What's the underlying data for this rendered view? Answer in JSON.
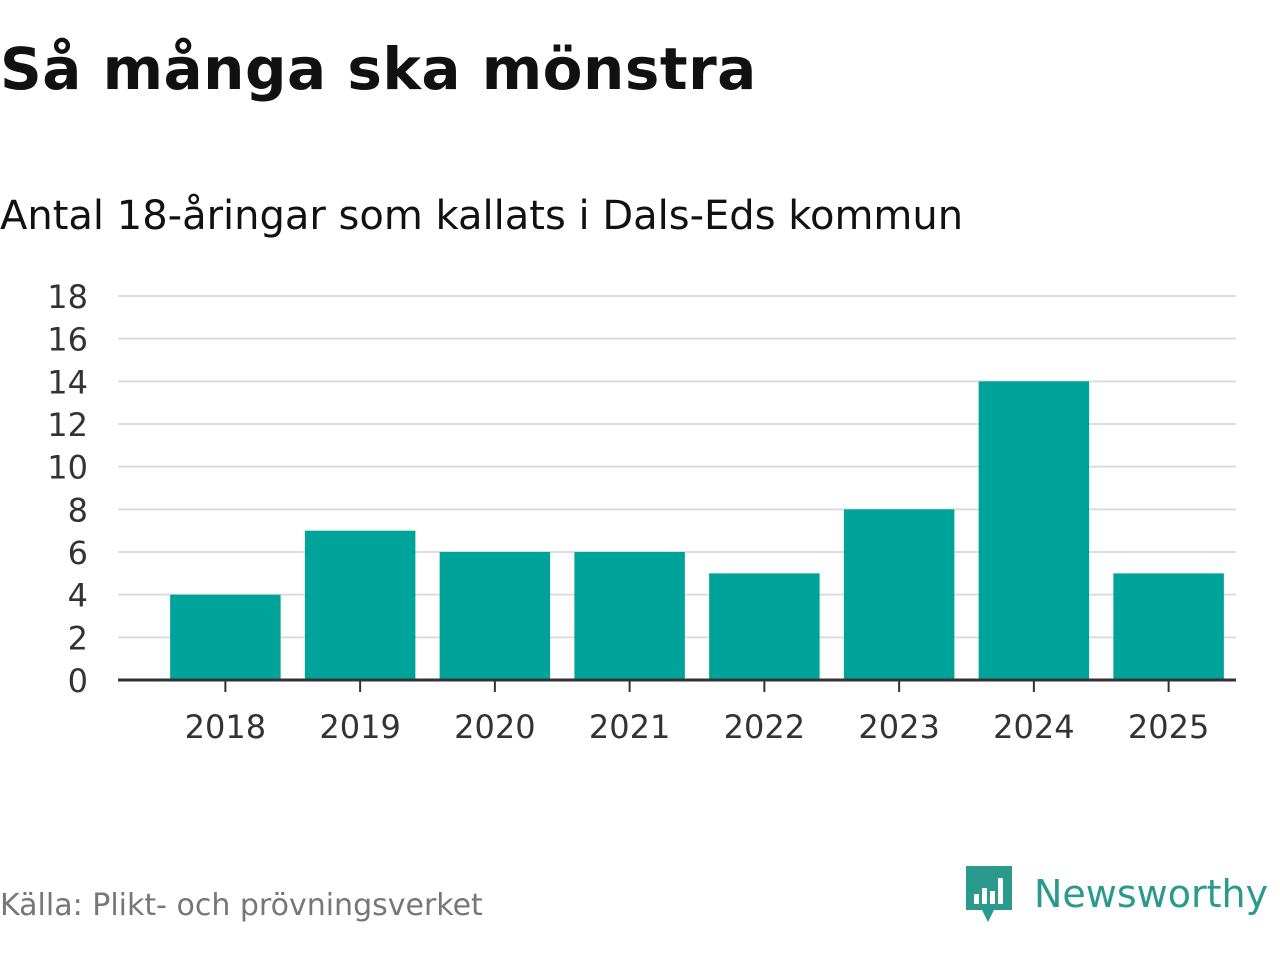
{
  "header": {
    "title": "Så många ska mönstra",
    "subtitle": "Antal 18-åringar som kallats i Dals-Eds kommun"
  },
  "footer": {
    "source": "Källa: Plikt- och prövningsverket",
    "brand_name": "Newsworthy",
    "brand_icon": "newsworthy-logo-icon",
    "brand_color": "#2a9a8c"
  },
  "chart_data": {
    "type": "bar",
    "categories": [
      "2018",
      "2019",
      "2020",
      "2021",
      "2022",
      "2023",
      "2024",
      "2025"
    ],
    "values": [
      4,
      7,
      6,
      6,
      5,
      8,
      14,
      5
    ],
    "title": "Så många ska mönstra",
    "subtitle": "Antal 18-åringar som kallats i Dals-Eds kommun",
    "ylim": [
      0,
      18
    ],
    "yticks": [
      0,
      2,
      4,
      6,
      8,
      10,
      12,
      14,
      16,
      18
    ],
    "grid": true,
    "bar_color": "#00a39a",
    "grid_color": "#dddddd",
    "axis_color": "#333333"
  }
}
